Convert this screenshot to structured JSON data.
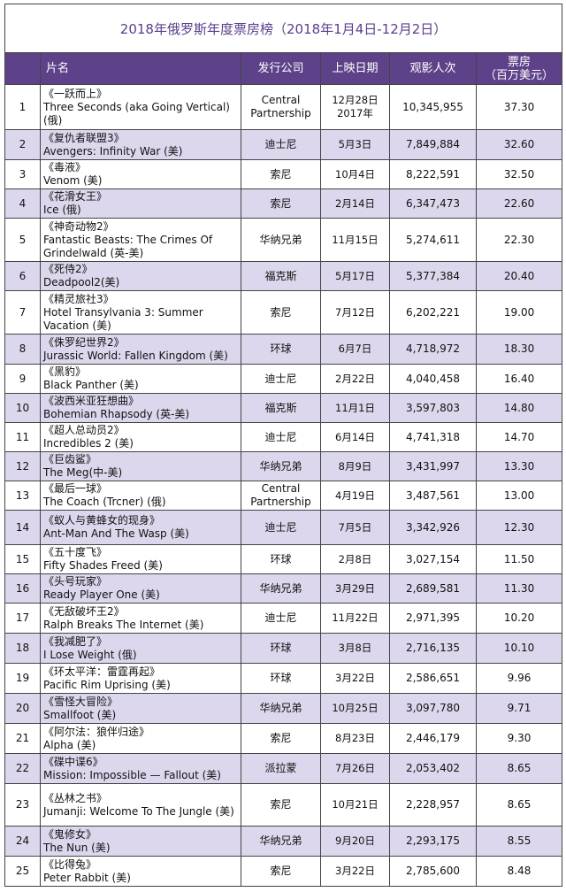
{
  "title": "2018年俄罗斯年度票房榜（2018年1月4日-12月2日）",
  "header": [
    "片名",
    "发行公司",
    "上映日期",
    "观影人次",
    "票房\n（百万美元）"
  ],
  "rows": [
    [
      1,
      "《一跃而上》",
      "Three Seconds (aka Going Vertical) (俄)",
      "Central Partnership",
      "12月28日\n2017年",
      "10,345,955",
      "37.30"
    ],
    [
      2,
      "《复仇者联盟3》",
      "Avengers: Infinity War (美)",
      "迪士尼",
      "5月3日",
      "7,849,884",
      "32.60"
    ],
    [
      3,
      "《毒液》",
      "Venom (美)",
      "索尼",
      "10月4日",
      "8,222,591",
      "32.50"
    ],
    [
      4,
      "《花滑女王》",
      "Ice (俄)",
      "索尼",
      "2月14日",
      "6,347,473",
      "22.60"
    ],
    [
      5,
      "《神奇动物2》",
      "Fantastic Beasts: The Crimes Of Grindelwald (英-美)",
      "华纳兄弟",
      "11月15日",
      "5,274,611",
      "22.30"
    ],
    [
      6,
      "《死侍2》",
      "Deadpool2(美)",
      "福克斯",
      "5月17日",
      "5,377,384",
      "20.40"
    ],
    [
      7,
      "《精灵旅社3》",
      "Hotel Transylvania 3: Summer Vacation (美)",
      "索尼",
      "7月12日",
      "6,202,221",
      "19.00"
    ],
    [
      8,
      "《侏罗纪世界2》",
      "Jurassic World: Fallen Kingdom (美)",
      "环球",
      "6月7日",
      "4,718,972",
      "18.30"
    ],
    [
      9,
      "《黑豹》",
      "Black Panther (美)",
      "迪士尼",
      "2月22日",
      "4,040,458",
      "16.40"
    ],
    [
      10,
      "《波西米亚狂想曲》",
      "Bohemian Rhapsody (英-美)",
      "福克斯",
      "11月1日",
      "3,597,803",
      "14.80"
    ],
    [
      11,
      "《超人总动员2》",
      "Incredibles 2 (美)",
      "迪士尼",
      "6月14日",
      "4,741,318",
      "14.70"
    ],
    [
      12,
      "《巨齿鲨》",
      "The Meg(中-美)",
      "华纳兄弟",
      "8月9日",
      "3,431,997",
      "13.30"
    ],
    [
      13,
      "《最后一球》",
      "The Coach (Trcner) (俄)",
      "Central Partnership",
      "4月19日",
      "3,487,561",
      "13.00"
    ],
    [
      14,
      "《蚁人与黄蜂女的现身》",
      "Ant-Man And The Wasp (美)",
      "迪士尼",
      "7月5日",
      "3,342,926",
      "12.30"
    ],
    [
      15,
      "《五十度飞》",
      "Fifty Shades Freed (美)",
      "环球",
      "2月8日",
      "3,027,154",
      "11.50"
    ],
    [
      16,
      "《头号玩家》",
      "Ready Player One (美)",
      "华纳兄弟",
      "3月29日",
      "2,689,581",
      "11.30"
    ],
    [
      17,
      "《无敌破坏王2》",
      "Ralph Breaks The Internet (美)",
      "迪士尼",
      "11月22日",
      "2,971,395",
      "10.20"
    ],
    [
      18,
      "《我减肥了》",
      "I Lose Weight (俄)",
      "环球",
      "3月8日",
      "2,716,135",
      "10.10"
    ],
    [
      19,
      "《环太平洋：雷霆再起》",
      "Pacific Rim Uprising (美)",
      "环球",
      "3月22日",
      "2,586,651",
      "9.96"
    ],
    [
      20,
      "《雪怪大冒险》",
      "Smallfoot (美)",
      "华纳兄弟",
      "10月25日",
      "3,097,780",
      "9.71"
    ],
    [
      21,
      "《阿尔法：狼伴归途》",
      "Alpha (美)",
      "索尼",
      "8月23日",
      "2,446,179",
      "9.30"
    ],
    [
      22,
      "《碟中谍6》",
      "Mission: Impossible — Fallout (美)",
      "派拉蒙",
      "7月26日",
      "2,053,402",
      "8.65"
    ],
    [
      23,
      "《丛林之书》",
      "Jumanji: Welcome To The Jungle (美)",
      "索尼",
      "10月21日",
      "2,228,957",
      "8.65"
    ],
    [
      24,
      "《鬼修女》",
      "The Nun (美)",
      "华纳兄弟",
      "9月20日",
      "2,293,175",
      "8.55"
    ],
    [
      25,
      "《比得兔》",
      "Peter Rabbit (美)",
      "索尼",
      "3月22日",
      "2,785,600",
      "8.48"
    ]
  ]
}
